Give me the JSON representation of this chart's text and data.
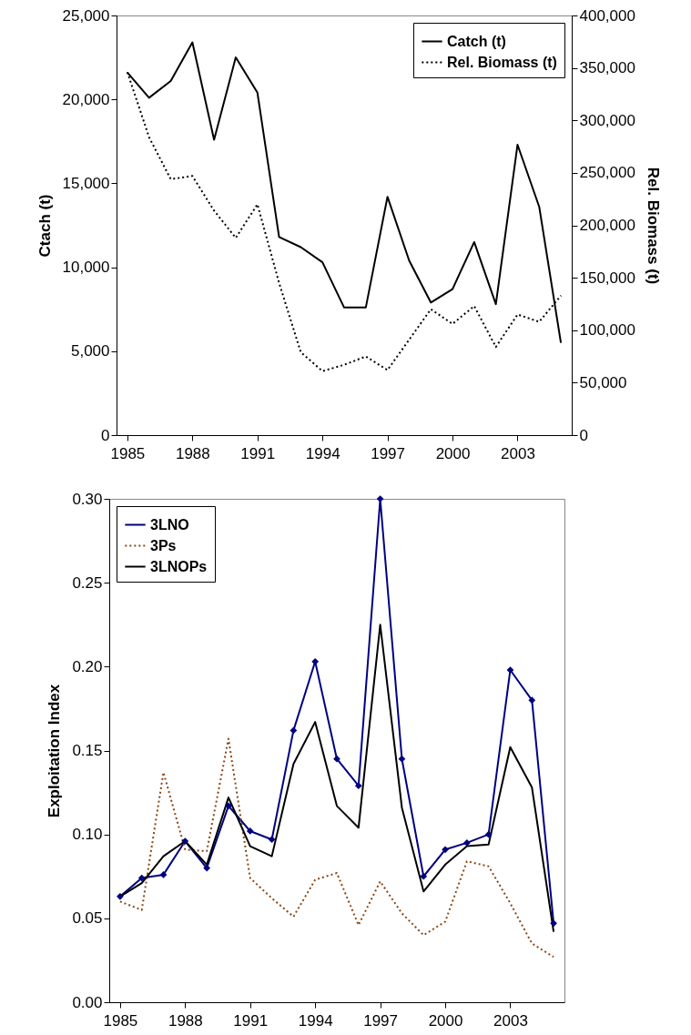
{
  "chart_data": [
    {
      "type": "line",
      "x": [
        1985,
        1986,
        1987,
        1988,
        1989,
        1990,
        1991,
        1992,
        1993,
        1994,
        1995,
        1996,
        1997,
        1998,
        1999,
        2000,
        2001,
        2002,
        2003,
        2004,
        2005
      ],
      "ylabel": "Ctach (t)",
      "y2label": "Rel. Biomass (t)",
      "xlim": [
        1984.5,
        2005.5
      ],
      "xticks": [
        1985,
        1988,
        1991,
        1994,
        1997,
        2000,
        2003
      ],
      "ylim": [
        0,
        25000
      ],
      "yticks": [
        {
          "value": 0,
          "label": "0"
        },
        {
          "value": 5000,
          "label": "5,000"
        },
        {
          "value": 10000,
          "label": "10,000"
        },
        {
          "value": 15000,
          "label": "15,000"
        },
        {
          "value": 20000,
          "label": "20,000"
        },
        {
          "value": 25000,
          "label": "25,000"
        }
      ],
      "y2lim": [
        0,
        400000
      ],
      "y2ticks": [
        {
          "value": 0,
          "label": "0"
        },
        {
          "value": 50000,
          "label": "50,000"
        },
        {
          "value": 100000,
          "label": "100,000"
        },
        {
          "value": 150000,
          "label": "150,000"
        },
        {
          "value": 200000,
          "label": "200,000"
        },
        {
          "value": 250000,
          "label": "250,000"
        },
        {
          "value": 300000,
          "label": "300,000"
        },
        {
          "value": 350000,
          "label": "350,000"
        },
        {
          "value": 400000,
          "label": "400,000"
        }
      ],
      "grid": false,
      "legend": "top right",
      "series": [
        {
          "name": "Catch (t)",
          "color": "#000000",
          "line_style": "solid",
          "values": [
            21600,
            20100,
            21100,
            23400,
            17600,
            22500,
            20400,
            11800,
            11200,
            10300,
            7600,
            7600,
            14200,
            10400,
            7900,
            8700,
            11500,
            7800,
            17300,
            13600,
            5500
          ]
        },
        {
          "name": "Rel. Biomass (t)",
          "color": "#000000",
          "line_style": "dotted",
          "axis": "y2",
          "values": [
            346000,
            284000,
            244000,
            247000,
            214000,
            188000,
            220000,
            145000,
            79000,
            61000,
            67000,
            75000,
            62000,
            91000,
            120000,
            106000,
            123000,
            84000,
            115000,
            108000,
            133000
          ]
        }
      ]
    },
    {
      "type": "line",
      "x": [
        1985,
        1986,
        1987,
        1988,
        1989,
        1990,
        1991,
        1992,
        1993,
        1994,
        1995,
        1996,
        1997,
        1998,
        1999,
        2000,
        2001,
        2002,
        2003,
        2004,
        2005
      ],
      "ylabel": "Exploitation Index",
      "xlim": [
        1984.5,
        2005.5
      ],
      "xticks": [
        1985,
        1988,
        1991,
        1994,
        1997,
        2000,
        2003
      ],
      "ylim": [
        0,
        0.3
      ],
      "yticks": [
        {
          "value": 0,
          "label": "0.00"
        },
        {
          "value": 0.05,
          "label": "0.05"
        },
        {
          "value": 0.1,
          "label": "0.10"
        },
        {
          "value": 0.15,
          "label": "0.15"
        },
        {
          "value": 0.2,
          "label": "0.20"
        },
        {
          "value": 0.25,
          "label": "0.25"
        },
        {
          "value": 0.3,
          "label": "0.30"
        }
      ],
      "grid": false,
      "legend": "top left",
      "series": [
        {
          "name": "3LNO",
          "color": "#000080",
          "line_style": "solid",
          "marker": "diamond",
          "values": [
            0.063,
            0.074,
            0.076,
            0.096,
            0.08,
            0.117,
            0.102,
            0.097,
            0.162,
            0.203,
            0.145,
            0.129,
            0.3,
            0.145,
            0.075,
            0.091,
            0.095,
            0.1,
            0.198,
            0.18,
            0.047
          ]
        },
        {
          "name": "3Ps",
          "color": "#8b4513",
          "line_style": "dotted",
          "values": [
            0.06,
            0.055,
            0.137,
            0.091,
            0.09,
            0.157,
            0.074,
            0.062,
            0.051,
            0.073,
            0.077,
            0.046,
            0.072,
            0.053,
            0.04,
            0.048,
            0.084,
            0.081,
            0.059,
            0.035,
            0.027
          ]
        },
        {
          "name": "3LNOPs",
          "color": "#000000",
          "line_style": "solid",
          "values": [
            0.063,
            0.071,
            0.087,
            0.096,
            0.082,
            0.122,
            0.093,
            0.087,
            0.142,
            0.167,
            0.117,
            0.104,
            0.225,
            0.116,
            0.066,
            0.082,
            0.093,
            0.094,
            0.152,
            0.128,
            0.042
          ]
        }
      ]
    }
  ]
}
